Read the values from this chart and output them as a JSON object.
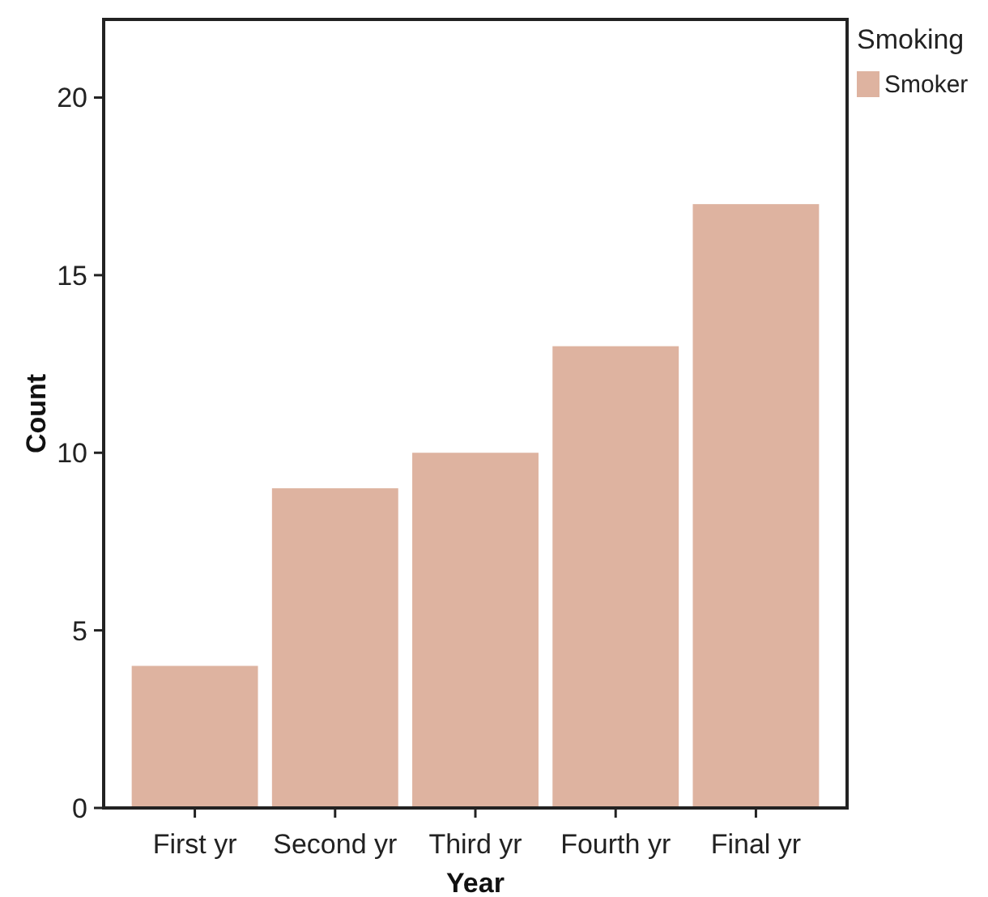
{
  "chart_data": {
    "type": "bar",
    "xlabel": "Year",
    "ylabel": "Count",
    "legend_title": "Smoking",
    "categories": [
      "First yr",
      "Second yr",
      "Third yr",
      "Fourth yr",
      "Final yr"
    ],
    "series": [
      {
        "name": "Smoker",
        "color": "#deb3a0",
        "values": [
          4,
          9,
          10,
          13,
          17
        ]
      }
    ],
    "ylim": [
      0,
      22.2
    ],
    "yticks": [
      0,
      5,
      10,
      15,
      20
    ],
    "grid": false,
    "legend": "top right"
  }
}
